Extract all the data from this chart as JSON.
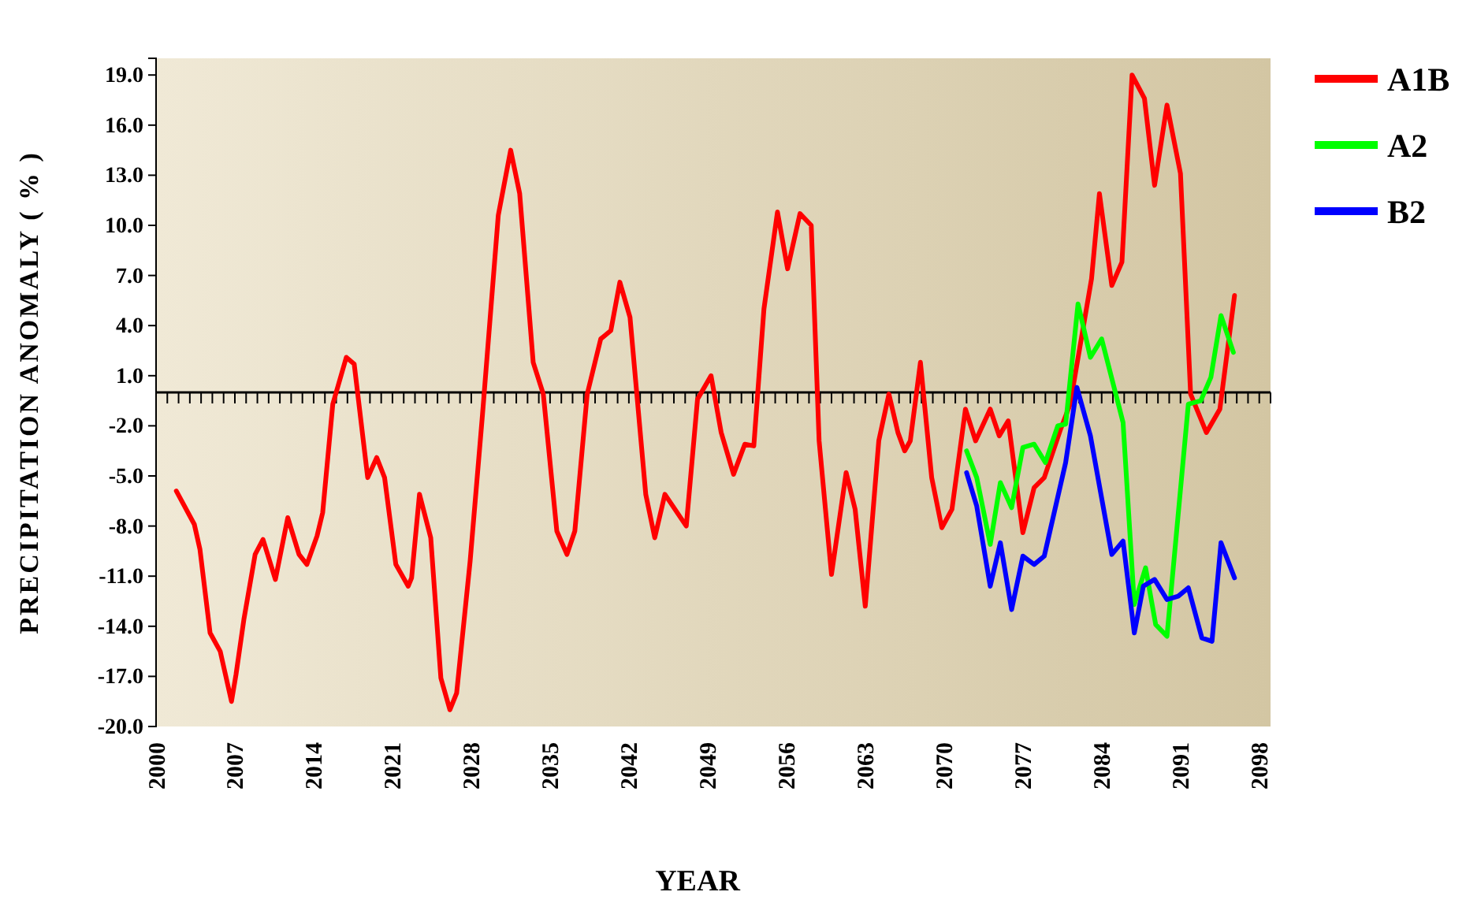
{
  "chart_data": {
    "type": "line",
    "xlabel": "YEAR",
    "ylabel": "PRECIPITATION ANOMALY ( % )",
    "xlim": [
      2000,
      2099
    ],
    "xticks": [
      2000,
      2007,
      2014,
      2021,
      2028,
      2035,
      2042,
      2049,
      2056,
      2063,
      2070,
      2077,
      2084,
      2091,
      2098
    ],
    "ylim": [
      -20,
      20
    ],
    "yticks": [
      {
        "value": -20,
        "label": "-20.0"
      },
      {
        "value": -17,
        "label": "-17.0"
      },
      {
        "value": -14,
        "label": "-14.0"
      },
      {
        "value": -11,
        "label": "-11.0"
      },
      {
        "value": -8,
        "label": "-8.0"
      },
      {
        "value": -5,
        "label": "-5.0"
      },
      {
        "value": -2,
        "label": "-2.0"
      },
      {
        "value": 1,
        "label": "1.0"
      },
      {
        "value": 4,
        "label": "4.0"
      },
      {
        "value": 7,
        "label": "7.0"
      },
      {
        "value": 10,
        "label": "10.0"
      },
      {
        "value": 13,
        "label": "13.0"
      },
      {
        "value": 16,
        "label": "16.0"
      },
      {
        "value": 19,
        "label": "19.0"
      }
    ],
    "grid": false,
    "legend": "top right",
    "marker": "none",
    "line_style": "solid",
    "series": [
      {
        "name": "A1B",
        "color": "#ff0000",
        "x": [
          2001.8,
          2003.4,
          2003.9,
          2004.8,
          2005.7,
          2006.7,
          2007.1,
          2007.8,
          2008.8,
          2009.5,
          2010.6,
          2011.7,
          2012.7,
          2013.4,
          2014.3,
          2014.8,
          2015.7,
          2016.9,
          2017.6,
          2018.8,
          2019.6,
          2020.3,
          2021.3,
          2022.4,
          2022.7,
          2023.4,
          2024.4,
          2025.3,
          2026.1,
          2026.7,
          2027.9,
          2029.0,
          2030.4,
          2031.5,
          2032.3,
          2033.5,
          2034.4,
          2035.6,
          2036.5,
          2037.2,
          2038.3,
          2039.5,
          2040.4,
          2041.2,
          2042.1,
          2043.5,
          2044.3,
          2045.2,
          2047.1,
          2048.1,
          2049.3,
          2050.2,
          2051.3,
          2052.3,
          2053.1,
          2054.0,
          2055.2,
          2056.1,
          2057.2,
          2058.2,
          2058.9,
          2060.0,
          2061.3,
          2062.1,
          2063.0,
          2064.2,
          2065.1,
          2065.9,
          2066.5,
          2067.0,
          2067.9,
          2068.9,
          2069.8,
          2070.7,
          2071.9,
          2072.8,
          2074.1,
          2074.9,
          2075.7,
          2077.0,
          2078.0,
          2078.9,
          2080.3,
          2081.2,
          2083.1,
          2083.8,
          2084.9,
          2085.8,
          2086.7,
          2087.8,
          2088.7,
          2089.8,
          2091.0,
          2091.9,
          2093.3,
          2094.5,
          2095.8
        ],
        "values": [
          -5.9,
          -7.9,
          -9.4,
          -14.4,
          -15.5,
          -18.5,
          -16.9,
          -13.6,
          -9.7,
          -8.8,
          -11.2,
          -7.5,
          -9.7,
          -10.3,
          -8.6,
          -7.2,
          -0.7,
          2.1,
          1.7,
          -5.1,
          -3.9,
          -5.1,
          -10.3,
          -11.6,
          -11.1,
          -6.1,
          -8.7,
          -17.1,
          -19.0,
          -18.0,
          -10.1,
          -1.3,
          10.6,
          14.5,
          11.9,
          1.8,
          -0.1,
          -8.3,
          -9.7,
          -8.3,
          -0.1,
          3.2,
          3.7,
          6.6,
          4.5,
          -6.1,
          -8.7,
          -6.1,
          -8.0,
          -0.4,
          1.0,
          -2.4,
          -4.9,
          -3.1,
          -3.2,
          5.0,
          10.8,
          7.4,
          10.7,
          10.0,
          -2.9,
          -10.9,
          -4.8,
          -7.0,
          -12.8,
          -2.9,
          -0.1,
          -2.4,
          -3.5,
          -2.9,
          1.8,
          -5.1,
          -8.1,
          -7.0,
          -1.0,
          -2.9,
          -1.0,
          -2.6,
          -1.7,
          -8.4,
          -5.7,
          -5.1,
          -2.3,
          -0.7,
          6.8,
          11.9,
          6.4,
          7.8,
          19.0,
          17.6,
          12.4,
          17.2,
          13.1,
          -0.1,
          -2.4,
          -1.0,
          5.8
        ]
      },
      {
        "name": "A2",
        "color": "#00ff00",
        "x": [
          2072.0,
          2072.9,
          2074.1,
          2075.0,
          2076.0,
          2077.0,
          2078.0,
          2079.0,
          2080.1,
          2080.8,
          2081.9,
          2083.0,
          2084.0,
          2085.9,
          2086.9,
          2087.9,
          2088.8,
          2089.8,
          2091.7,
          2092.8,
          2093.7,
          2094.6,
          2095.7
        ],
        "values": [
          -3.5,
          -5.1,
          -9.1,
          -5.4,
          -6.9,
          -3.3,
          -3.1,
          -4.2,
          -2.0,
          -1.9,
          5.3,
          2.1,
          3.2,
          -1.8,
          -12.7,
          -10.5,
          -13.9,
          -14.6,
          -0.7,
          -0.5,
          0.9,
          4.6,
          2.4
        ]
      },
      {
        "name": "B2",
        "color": "#0000ff",
        "x": [
          2072.0,
          2072.9,
          2074.1,
          2075.0,
          2076.0,
          2077.0,
          2078.0,
          2078.9,
          2080.8,
          2081.8,
          2083.0,
          2084.9,
          2085.9,
          2086.9,
          2087.7,
          2088.7,
          2089.8,
          2090.8,
          2091.7,
          2092.9,
          2093.8,
          2094.6,
          2095.8
        ],
        "values": [
          -4.8,
          -6.8,
          -11.6,
          -9.0,
          -13.0,
          -9.8,
          -10.3,
          -9.8,
          -4.2,
          0.3,
          -2.6,
          -9.7,
          -8.9,
          -14.4,
          -11.6,
          -11.2,
          -12.4,
          -12.2,
          -11.7,
          -14.7,
          -14.9,
          -9.0,
          -11.1
        ]
      }
    ]
  }
}
